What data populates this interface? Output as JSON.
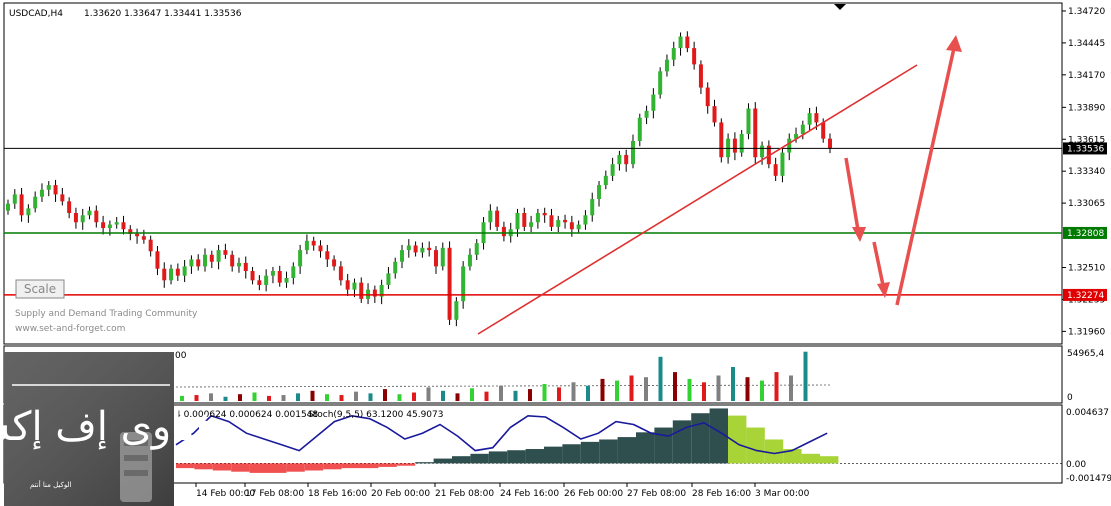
{
  "chart_data": {
    "type": "candlestick",
    "header": {
      "symbol": "USDCAD,H4",
      "ohlc": "1.33620 1.33647 1.33441 1.33536"
    },
    "price_axis": {
      "min": 1.3186,
      "max": 1.3478,
      "ticks": [
        "1.34720",
        "1.34445",
        "1.34170",
        "1.33890",
        "1.33615",
        "1.33340",
        "1.33065",
        "1.32510",
        "1.32235",
        "1.31960"
      ],
      "tick_values": [
        1.3472,
        1.34445,
        1.3417,
        1.3389,
        1.33615,
        1.3334,
        1.33065,
        1.3251,
        1.32235,
        1.3196
      ]
    },
    "levels": [
      {
        "label": "1.33536",
        "value": 1.33536,
        "color": "#000000"
      },
      {
        "label": "1.32808",
        "value": 1.32808,
        "color": "#007a00"
      },
      {
        "label": "1.32274",
        "value": 1.32274,
        "color": "#e00000"
      }
    ],
    "time_labels": [
      "14 Feb 00:00",
      "17 Feb 08:00",
      "18 Feb 16:00",
      "20 Feb 00:00",
      "21 Feb 08:00",
      "24 Feb 16:00",
      "26 Feb 00:00",
      "27 Feb 08:00",
      "28 Feb 16:00",
      "3 Mar 00:00"
    ],
    "candles_close": [
      1.3306,
      1.3314,
      1.3296,
      1.3302,
      1.3312,
      1.3318,
      1.3322,
      1.3314,
      1.3308,
      1.3298,
      1.329,
      1.3296,
      1.33,
      1.329,
      1.3285,
      1.3288,
      1.329,
      1.3284,
      1.328,
      1.3278,
      1.3275,
      1.3265,
      1.325,
      1.324,
      1.325,
      1.3244,
      1.3252,
      1.3258,
      1.3252,
      1.3262,
      1.3256,
      1.3266,
      1.3262,
      1.3252,
      1.3255,
      1.3248,
      1.324,
      1.3236,
      1.3244,
      1.3248,
      1.3238,
      1.3242,
      1.3252,
      1.3266,
      1.3274,
      1.327,
      1.3265,
      1.3258,
      1.3252,
      1.324,
      1.3232,
      1.3238,
      1.3224,
      1.3232,
      1.3226,
      1.3236,
      1.3246,
      1.3256,
      1.3266,
      1.327,
      1.3264,
      1.3268,
      1.3266,
      1.3252,
      1.3268,
      1.3206,
      1.3222,
      1.3252,
      1.3262,
      1.3272,
      1.329,
      1.33,
      1.3286,
      1.3278,
      1.3284,
      1.3298,
      1.3286,
      1.329,
      1.3298,
      1.3296,
      1.3286,
      1.3292,
      1.329,
      1.3284,
      1.3288,
      1.3296,
      1.331,
      1.3322,
      1.333,
      1.334,
      1.3348,
      1.334,
      1.336,
      1.338,
      1.3386,
      1.34,
      1.342,
      1.343,
      1.344,
      1.345,
      1.344,
      1.3426,
      1.3406,
      1.339,
      1.3376,
      1.3346,
      1.3362,
      1.335,
      1.3366,
      1.3388,
      1.3346,
      1.3356,
      1.334,
      1.333,
      1.335,
      1.3362,
      1.3366,
      1.3374,
      1.3384,
      1.3376,
      1.3362,
      1.3354
    ],
    "volume_axis": {
      "ticks": [
        "54965,4",
        "0"
      ],
      "max": 54965.4
    },
    "oscillator": {
      "label": "4 0.000624 0.000624 0.001548",
      "stoch_label": "Stoch(9,5,5) 63.1200 45.9073",
      "axis_ticks": [
        "0.004637",
        "0.00",
        "-0.001479"
      ],
      "max": 0.004637,
      "min": -0.001479
    },
    "volume_partial_label": "00",
    "annotations": [
      "Scale",
      "Supply and Demand Trading Community",
      "www.set-and-forget.com"
    ],
    "logo_text": "فناوی إف إكس",
    "logo_subtext": "الوكيل منا أنتم",
    "colors": {
      "bull": "#32b432",
      "bear": "#e01a1a",
      "trend": "#e03030",
      "support": "#007a00",
      "resistance": "#e00000",
      "stoch": "#1a1a9c"
    }
  }
}
